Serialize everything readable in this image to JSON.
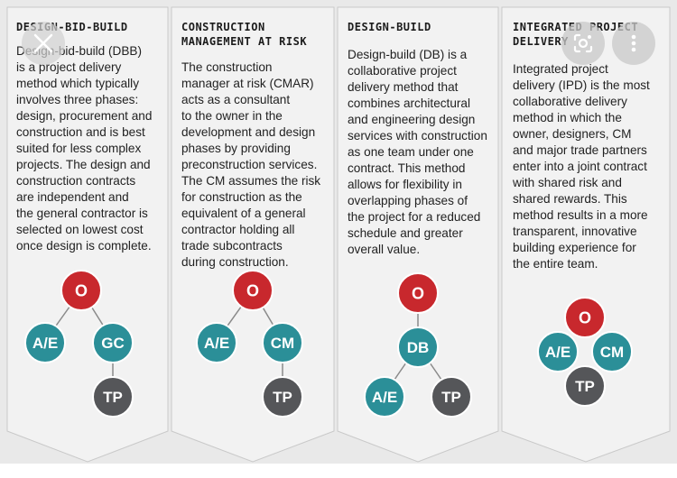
{
  "colors": {
    "owner": "#c8282d",
    "teal": "#2b8f98",
    "tp": "#555659",
    "panel": "#f2f2f2",
    "line": "#8a8a8a"
  },
  "panels": [
    {
      "title": "DESIGN-BID-BUILD",
      "lines": [
        "Design-bid-build (DBB)",
        "is a project delivery",
        "method which typically",
        "involves three phases:",
        "design, procurement and",
        "construction and is best",
        "suited for less complex",
        "projects. The design and",
        "construction contracts",
        "are independent and",
        "the general contractor is",
        "selected on lowest cost",
        "once design is complete."
      ],
      "nodes": {
        "top": "O",
        "left": "A/E",
        "right": "GC",
        "bottom": "TP"
      }
    },
    {
      "title": "CONSTRUCTION\nMANAGEMENT AT RISK",
      "lines": [
        "The construction",
        "manager at risk (CMAR)",
        "acts as a consultant",
        "to the owner in the",
        "development and design",
        "phases by providing",
        "preconstruction services.",
        "The CM assumes the risk",
        "for construction as the",
        "equivalent of a general",
        "contractor holding all",
        "trade subcontracts",
        "during construction."
      ],
      "nodes": {
        "top": "O",
        "left": "A/E",
        "right": "CM",
        "bottom": "TP"
      }
    },
    {
      "title": "DESIGN-BUILD",
      "lines": [
        "Design-build (DB) is a",
        "collaborative project",
        "delivery method that",
        "combines architectural",
        "and engineering design",
        "services with construction",
        "as one team under one",
        "contract. This method",
        "allows for flexibility in",
        "overlapping phases of",
        "the project for a reduced",
        "schedule and greater",
        "overall value."
      ],
      "nodes": {
        "top": "O",
        "middle": "DB",
        "left": "A/E",
        "right": "TP"
      }
    },
    {
      "title": "INTEGRATED PROJECT\nDELIVERY",
      "lines": [
        "Integrated project",
        "delivery (IPD) is the most",
        "collaborative delivery",
        "method in which the",
        "owner, designers, CM",
        "and major trade partners",
        "enter into a joint contract",
        "with shared risk and",
        "shared rewards. This",
        "method results in a more",
        "transparent, innovative",
        "building experience for",
        "the entire team."
      ],
      "nodes": {
        "top": "O",
        "left": "A/E",
        "right": "CM",
        "bottom": "TP"
      }
    }
  ],
  "overlay": {
    "close_icon": "close-icon",
    "lens_icon": "lens-icon",
    "more_icon": "more-icon"
  }
}
